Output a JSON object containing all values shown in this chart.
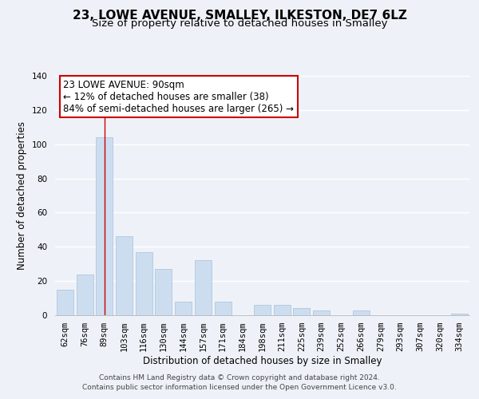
{
  "title": "23, LOWE AVENUE, SMALLEY, ILKESTON, DE7 6LZ",
  "subtitle": "Size of property relative to detached houses in Smalley",
  "xlabel": "Distribution of detached houses by size in Smalley",
  "ylabel": "Number of detached properties",
  "categories": [
    "62sqm",
    "76sqm",
    "89sqm",
    "103sqm",
    "116sqm",
    "130sqm",
    "144sqm",
    "157sqm",
    "171sqm",
    "184sqm",
    "198sqm",
    "211sqm",
    "225sqm",
    "239sqm",
    "252sqm",
    "266sqm",
    "279sqm",
    "293sqm",
    "307sqm",
    "320sqm",
    "334sqm"
  ],
  "values": [
    15,
    24,
    104,
    46,
    37,
    27,
    8,
    32,
    8,
    0,
    6,
    6,
    4,
    3,
    0,
    3,
    0,
    0,
    0,
    0,
    1
  ],
  "bar_color": "#ccddf0",
  "bar_edge_color": "#a8c0dc",
  "marker_index": 2,
  "marker_color": "#cc0000",
  "ylim": [
    0,
    140
  ],
  "yticks": [
    0,
    20,
    40,
    60,
    80,
    100,
    120,
    140
  ],
  "annotation_title": "23 LOWE AVENUE: 90sqm",
  "annotation_line1": "← 12% of detached houses are smaller (38)",
  "annotation_line2": "84% of semi-detached houses are larger (265) →",
  "annotation_box_color": "#ffffff",
  "annotation_box_edge": "#cc0000",
  "footer_line1": "Contains HM Land Registry data © Crown copyright and database right 2024.",
  "footer_line2": "Contains public sector information licensed under the Open Government Licence v3.0.",
  "background_color": "#eef2f8",
  "grid_color": "#ffffff",
  "title_fontsize": 11,
  "subtitle_fontsize": 9.5,
  "axis_fontsize": 8.5,
  "tick_fontsize": 7.5,
  "footer_fontsize": 6.5
}
